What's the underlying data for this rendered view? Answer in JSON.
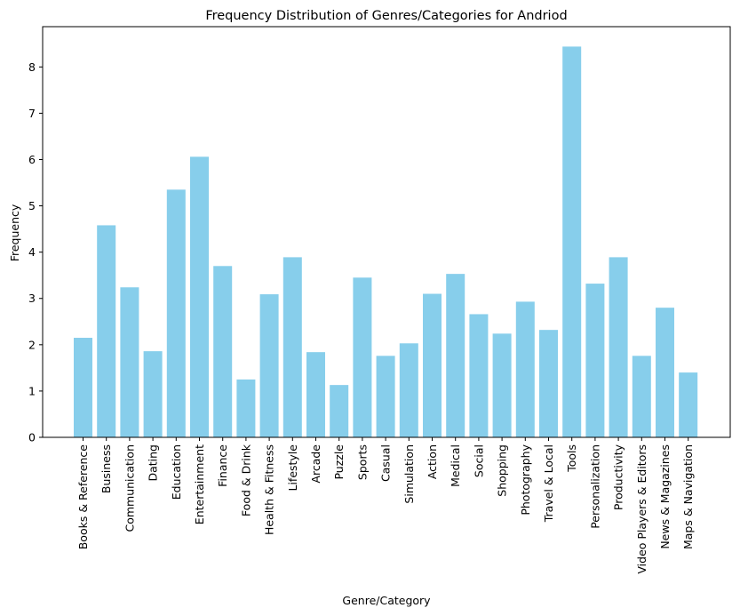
{
  "chart_data": {
    "type": "bar",
    "title": "Frequency Distribution of Genres/Categories for Andriod",
    "xlabel": "Genre/Category",
    "ylabel": "Frequency",
    "ylim": [
      0,
      8.87
    ],
    "yticks": [
      "0",
      "1",
      "2",
      "3",
      "4",
      "5",
      "6",
      "7",
      "8"
    ],
    "grid": false,
    "bar_color": "#87CEEB",
    "categories": [
      "Books & Reference",
      "Business",
      "Communication",
      "Dating",
      "Education",
      "Entertainment",
      "Finance",
      "Food & Drink",
      "Health & Fitness",
      "Lifestyle",
      "Arcade",
      "Puzzle",
      "Sports",
      "Casual",
      "Simulation",
      "Action",
      "Medical",
      "Social",
      "Shopping",
      "Photography",
      "Travel & Local",
      "Tools",
      "Personalization",
      "Productivity",
      "Video Players & Editors",
      "News & Magazines",
      "Maps & Navigation"
    ],
    "values": [
      2.15,
      4.58,
      3.24,
      1.86,
      5.35,
      6.06,
      3.7,
      1.25,
      3.09,
      3.89,
      1.84,
      1.13,
      3.45,
      1.76,
      2.03,
      3.1,
      3.53,
      2.66,
      2.24,
      2.93,
      2.32,
      8.44,
      3.32,
      3.89,
      1.76,
      2.8,
      1.4
    ]
  }
}
